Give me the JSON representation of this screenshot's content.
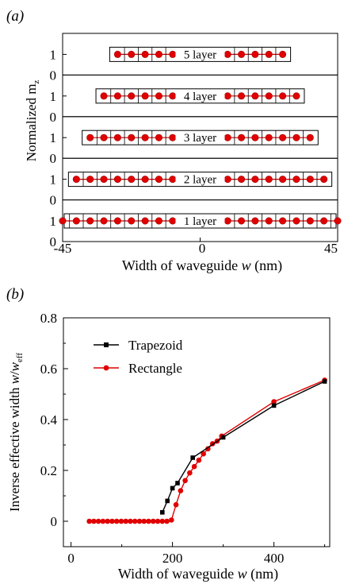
{
  "panel_a": {
    "label": "(a)",
    "ylabel": "Normalized m",
    "ylabel_sub": "z",
    "xlabel_prefix": "Width of waveguide ",
    "xlabel_var": "w",
    "xlabel_unit": " (nm)",
    "x_ticks": [
      "-45",
      "0",
      "45"
    ],
    "y_ticks": [
      "1",
      "0"
    ],
    "chart_data": {
      "type": "scatter",
      "xlim": [
        -45,
        45
      ],
      "subplots": [
        {
          "label": "5 layer",
          "width_nm": 27,
          "x": [
            -27.0,
            -22.5,
            -18.0,
            -13.5,
            -9.0,
            -4.5,
            0.0,
            4.5,
            9.0,
            13.5,
            18.0,
            22.5,
            27.0
          ],
          "y": [
            1,
            1,
            1,
            1,
            1,
            1,
            1,
            1,
            1,
            1,
            1,
            1,
            1
          ]
        },
        {
          "label": "4 layer",
          "width_nm": 31.5,
          "x": [
            -31.5,
            -27.0,
            -22.5,
            -18.0,
            -13.5,
            -9.0,
            -4.5,
            0.0,
            4.5,
            9.0,
            13.5,
            18.0,
            22.5,
            27.0,
            31.5
          ],
          "y": [
            1,
            1,
            1,
            1,
            1,
            1,
            1,
            1,
            1,
            1,
            1,
            1,
            1,
            1,
            1
          ]
        },
        {
          "label": "3 layer",
          "width_nm": 36,
          "x": [
            -36.0,
            -31.5,
            -27.0,
            -22.5,
            -18.0,
            -13.5,
            -9.0,
            -4.5,
            0.0,
            4.5,
            9.0,
            13.5,
            18.0,
            22.5,
            27.0,
            31.5,
            36.0
          ],
          "y": [
            1,
            1,
            1,
            1,
            1,
            1,
            1,
            1,
            1,
            1,
            1,
            1,
            1,
            1,
            1,
            1,
            1
          ]
        },
        {
          "label": "2 layer",
          "width_nm": 40.5,
          "x": [
            -40.5,
            -36.0,
            -31.5,
            -27.0,
            -22.5,
            -18.0,
            -13.5,
            -9.0,
            -4.5,
            0.0,
            4.5,
            9.0,
            13.5,
            18.0,
            22.5,
            27.0,
            31.5,
            36.0,
            40.5
          ],
          "y": [
            1,
            1,
            1,
            1,
            1,
            1,
            1,
            1,
            1,
            1,
            1,
            1,
            1,
            1,
            1,
            1,
            1,
            1,
            1
          ]
        },
        {
          "label": "1 layer",
          "width_nm": 45,
          "x": [
            -45.0,
            -40.5,
            -36.0,
            -31.5,
            -27.0,
            -22.5,
            -18.0,
            -13.5,
            -9.0,
            -4.5,
            0.0,
            4.5,
            9.0,
            13.5,
            18.0,
            22.5,
            27.0,
            31.5,
            36.0,
            40.5,
            45.0
          ],
          "y": [
            1,
            1,
            1,
            1,
            1,
            1,
            1,
            1,
            1,
            1,
            1,
            1,
            1,
            1,
            1,
            1,
            1,
            1,
            1,
            1,
            1
          ]
        }
      ]
    }
  },
  "panel_b": {
    "label": "(b)",
    "ylabel_prefix": "Inverse effective width ",
    "ylabel_var": "w",
    "ylabel_slash": "/",
    "ylabel_var2": "w",
    "ylabel_sub": "eff",
    "xlabel_prefix": "Width of waveguide ",
    "xlabel_var": "w",
    "xlabel_unit": " (nm)",
    "x_ticks": [
      "0",
      "200",
      "400"
    ],
    "y_ticks": [
      "0",
      "0.2",
      "0.4",
      "0.6",
      "0.8"
    ],
    "chart_data": {
      "type": "line",
      "xlim": [
        -15,
        510
      ],
      "ylim": [
        -0.1,
        0.8
      ],
      "legend_position": "top-left",
      "series": [
        {
          "name": "Trapezoid",
          "color": "#000000",
          "marker": "square",
          "x": [
            180,
            190,
            200,
            210,
            240,
            300,
            400,
            500
          ],
          "y": [
            0.035,
            0.08,
            0.13,
            0.15,
            0.25,
            0.33,
            0.455,
            0.55
          ]
        },
        {
          "name": "Rectangle",
          "color": "#e00000",
          "marker": "circle",
          "x": [
            36,
            45,
            54,
            63,
            72,
            81,
            90,
            99,
            108,
            117,
            126,
            135,
            144,
            153,
            162,
            171,
            180,
            189,
            198,
            207,
            216,
            225,
            234,
            243,
            252,
            261,
            270,
            279,
            288,
            297,
            400,
            500
          ],
          "y": [
            0,
            0,
            0,
            0,
            0,
            0,
            0,
            0,
            0,
            0,
            0,
            0,
            0,
            0,
            0,
            0,
            0,
            0,
            0.005,
            0.065,
            0.12,
            0.16,
            0.19,
            0.215,
            0.24,
            0.265,
            0.285,
            0.305,
            0.315,
            0.335,
            0.47,
            0.555
          ]
        }
      ]
    }
  }
}
